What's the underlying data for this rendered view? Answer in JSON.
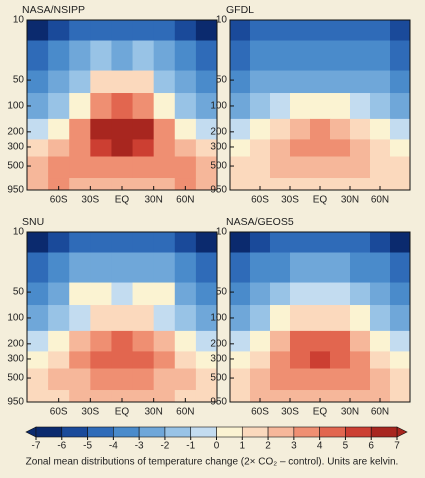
{
  "chart_data": [
    {
      "type": "contour",
      "title": "NASA/NSIPP",
      "xlim": [
        -90,
        90
      ],
      "xticks": [
        {
          "value": -60,
          "label": "60S"
        },
        {
          "value": -30,
          "label": "30S"
        },
        {
          "value": 0,
          "label": "EQ"
        },
        {
          "value": 30,
          "label": "30N"
        },
        {
          "value": 60,
          "label": "60N"
        }
      ],
      "ylim": [
        10,
        950
      ],
      "yticks": [
        10,
        50,
        100,
        200,
        300,
        500,
        950
      ],
      "log_scale": true,
      "x": [
        -80,
        -60,
        -40,
        -20,
        0,
        20,
        40,
        60,
        80
      ],
      "y": [
        10,
        30,
        50,
        100,
        200,
        300,
        500,
        950
      ],
      "values": [
        [
          -7,
          -6,
          -5,
          -5,
          -5,
          -5,
          -5,
          -6,
          -7
        ],
        [
          -5,
          -4,
          -3,
          -2,
          -3,
          -2,
          -3,
          -4,
          -5
        ],
        [
          -4,
          -3,
          -2,
          1,
          1,
          1,
          -2,
          -3,
          -4
        ],
        [
          -3,
          -2,
          0,
          3,
          4,
          3,
          0,
          -2,
          -3
        ],
        [
          -1,
          0,
          3,
          6,
          7,
          6,
          3,
          0,
          -1
        ],
        [
          1,
          2,
          3,
          5,
          6,
          5,
          3,
          2,
          1
        ],
        [
          2,
          3,
          3,
          3,
          3,
          3,
          3,
          3,
          2
        ],
        [
          2,
          3,
          2,
          2,
          2,
          2,
          2,
          3,
          2
        ]
      ]
    },
    {
      "type": "contour",
      "title": "GFDL",
      "xlim": [
        -90,
        90
      ],
      "xticks": [
        {
          "value": -60,
          "label": "60S"
        },
        {
          "value": -30,
          "label": "30S"
        },
        {
          "value": 0,
          "label": "EQ"
        },
        {
          "value": 30,
          "label": "30N"
        },
        {
          "value": 60,
          "label": "60N"
        }
      ],
      "ylim": [
        10,
        950
      ],
      "yticks": [
        10,
        50,
        100,
        200,
        300,
        500,
        950
      ],
      "log_scale": true,
      "x": [
        -80,
        -60,
        -40,
        -20,
        0,
        20,
        40,
        60,
        80
      ],
      "y": [
        10,
        30,
        50,
        100,
        200,
        300,
        500,
        950
      ],
      "values": [
        [
          -6,
          -5,
          -5,
          -5,
          -5,
          -5,
          -5,
          -5,
          -6
        ],
        [
          -5,
          -4,
          -4,
          -4,
          -4,
          -4,
          -4,
          -4,
          -5
        ],
        [
          -4,
          -3,
          -3,
          -3,
          -3,
          -3,
          -3,
          -3,
          -4
        ],
        [
          -3,
          -2,
          -1,
          0,
          0,
          0,
          -1,
          -2,
          -3
        ],
        [
          -1,
          0,
          1,
          2,
          3,
          2,
          1,
          0,
          -1
        ],
        [
          0,
          1,
          2,
          3,
          3,
          3,
          2,
          1,
          0
        ],
        [
          1,
          1,
          2,
          2,
          2,
          2,
          2,
          1,
          1
        ],
        [
          1,
          1,
          1,
          1,
          1,
          1,
          1,
          1,
          1
        ]
      ]
    },
    {
      "type": "contour",
      "title": "SNU",
      "xlim": [
        -90,
        90
      ],
      "xticks": [
        {
          "value": -60,
          "label": "60S"
        },
        {
          "value": -30,
          "label": "30S"
        },
        {
          "value": 0,
          "label": "EQ"
        },
        {
          "value": 30,
          "label": "30N"
        },
        {
          "value": 60,
          "label": "60N"
        }
      ],
      "ylim": [
        10,
        950
      ],
      "yticks": [
        10,
        50,
        100,
        200,
        300,
        500,
        950
      ],
      "log_scale": true,
      "x": [
        -80,
        -60,
        -40,
        -20,
        0,
        20,
        40,
        60,
        80
      ],
      "y": [
        10,
        30,
        50,
        100,
        200,
        300,
        500,
        950
      ],
      "values": [
        [
          -7,
          -6,
          -5,
          -5,
          -5,
          -5,
          -5,
          -6,
          -7
        ],
        [
          -5,
          -4,
          -3,
          -3,
          -3,
          -3,
          -3,
          -4,
          -5
        ],
        [
          -4,
          -3,
          0,
          0,
          -1,
          0,
          0,
          -3,
          -4
        ],
        [
          -3,
          -2,
          -1,
          1,
          1,
          1,
          -1,
          -2,
          -3
        ],
        [
          -1,
          0,
          2,
          3,
          4,
          3,
          2,
          0,
          -1
        ],
        [
          0,
          1,
          3,
          4,
          4,
          4,
          3,
          1,
          0
        ],
        [
          1,
          2,
          2,
          3,
          3,
          3,
          2,
          2,
          1
        ],
        [
          1,
          1,
          2,
          2,
          2,
          2,
          2,
          1,
          1
        ]
      ]
    },
    {
      "type": "contour",
      "title": "NASA/GEOS5",
      "xlim": [
        -90,
        90
      ],
      "xticks": [
        {
          "value": -60,
          "label": "60S"
        },
        {
          "value": -30,
          "label": "30S"
        },
        {
          "value": 0,
          "label": "EQ"
        },
        {
          "value": 30,
          "label": "30N"
        },
        {
          "value": 60,
          "label": "60N"
        }
      ],
      "ylim": [
        10,
        950
      ],
      "yticks": [
        10,
        50,
        100,
        200,
        300,
        500,
        950
      ],
      "log_scale": true,
      "x": [
        -80,
        -60,
        -40,
        -20,
        0,
        20,
        40,
        60,
        80
      ],
      "y": [
        10,
        30,
        50,
        100,
        200,
        300,
        500,
        950
      ],
      "values": [
        [
          -7,
          -6,
          -5,
          -5,
          -5,
          -5,
          -5,
          -6,
          -7
        ],
        [
          -5,
          -4,
          -4,
          -3,
          -3,
          -3,
          -4,
          -4,
          -5
        ],
        [
          -4,
          -3,
          -2,
          -1,
          -1,
          -1,
          -2,
          -3,
          -4
        ],
        [
          -3,
          -2,
          0,
          1,
          1,
          1,
          0,
          -2,
          -3
        ],
        [
          -1,
          0,
          2,
          4,
          4,
          4,
          2,
          0,
          -1
        ],
        [
          0,
          1,
          3,
          4,
          5,
          4,
          3,
          1,
          0
        ],
        [
          1,
          2,
          3,
          3,
          3,
          3,
          3,
          2,
          1
        ],
        [
          1,
          2,
          2,
          2,
          2,
          2,
          2,
          2,
          1
        ]
      ]
    }
  ],
  "colorbar": {
    "ticks": [
      -7,
      -6,
      -5,
      -4,
      -3,
      -2,
      -1,
      0,
      1,
      2,
      3,
      4,
      5,
      6,
      7
    ],
    "colors": [
      "#0b2a6e",
      "#1a4a9a",
      "#2f6bb8",
      "#4a8bcb",
      "#6fa7d9",
      "#98c3e6",
      "#c3dcf0",
      "#fbf3d2",
      "#fbd9bd",
      "#f6b79a",
      "#ef8f72",
      "#e2664f",
      "#cc3f32",
      "#a8261f"
    ]
  },
  "caption": "Zonal mean distributions of temperature change (2× CO₂ – control). Units are kelvin."
}
